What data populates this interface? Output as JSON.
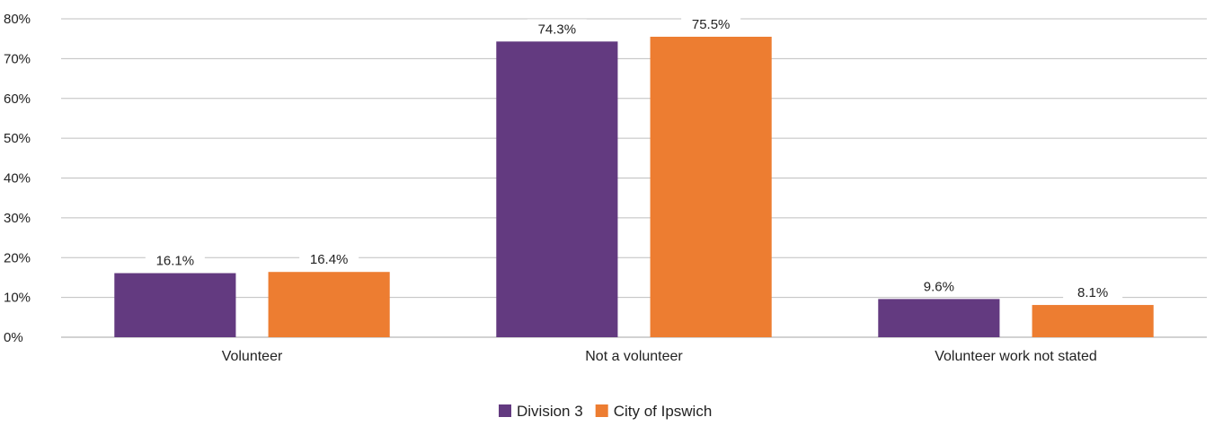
{
  "chart_data": {
    "type": "bar",
    "title": "",
    "xlabel": "",
    "ylabel": "",
    "ylim": [
      0,
      80
    ],
    "y_ticks": [
      0,
      10,
      20,
      30,
      40,
      50,
      60,
      70,
      80
    ],
    "y_tick_labels": [
      "0%",
      "10%",
      "20%",
      "30%",
      "40%",
      "50%",
      "60%",
      "70%",
      "80%"
    ],
    "categories": [
      "Volunteer",
      "Not a volunteer",
      "Volunteer work not stated"
    ],
    "series": [
      {
        "name": "Division 3",
        "color": "#633A80",
        "values": [
          16.1,
          74.3,
          9.6
        ],
        "labels": [
          "16.1%",
          "74.3%",
          "9.6%"
        ]
      },
      {
        "name": "City of Ipswich",
        "color": "#ED7D31",
        "values": [
          16.4,
          75.5,
          8.1
        ],
        "labels": [
          "16.4%",
          "75.5%",
          "8.1%"
        ]
      }
    ],
    "grid": true,
    "legend_position": "bottom"
  }
}
